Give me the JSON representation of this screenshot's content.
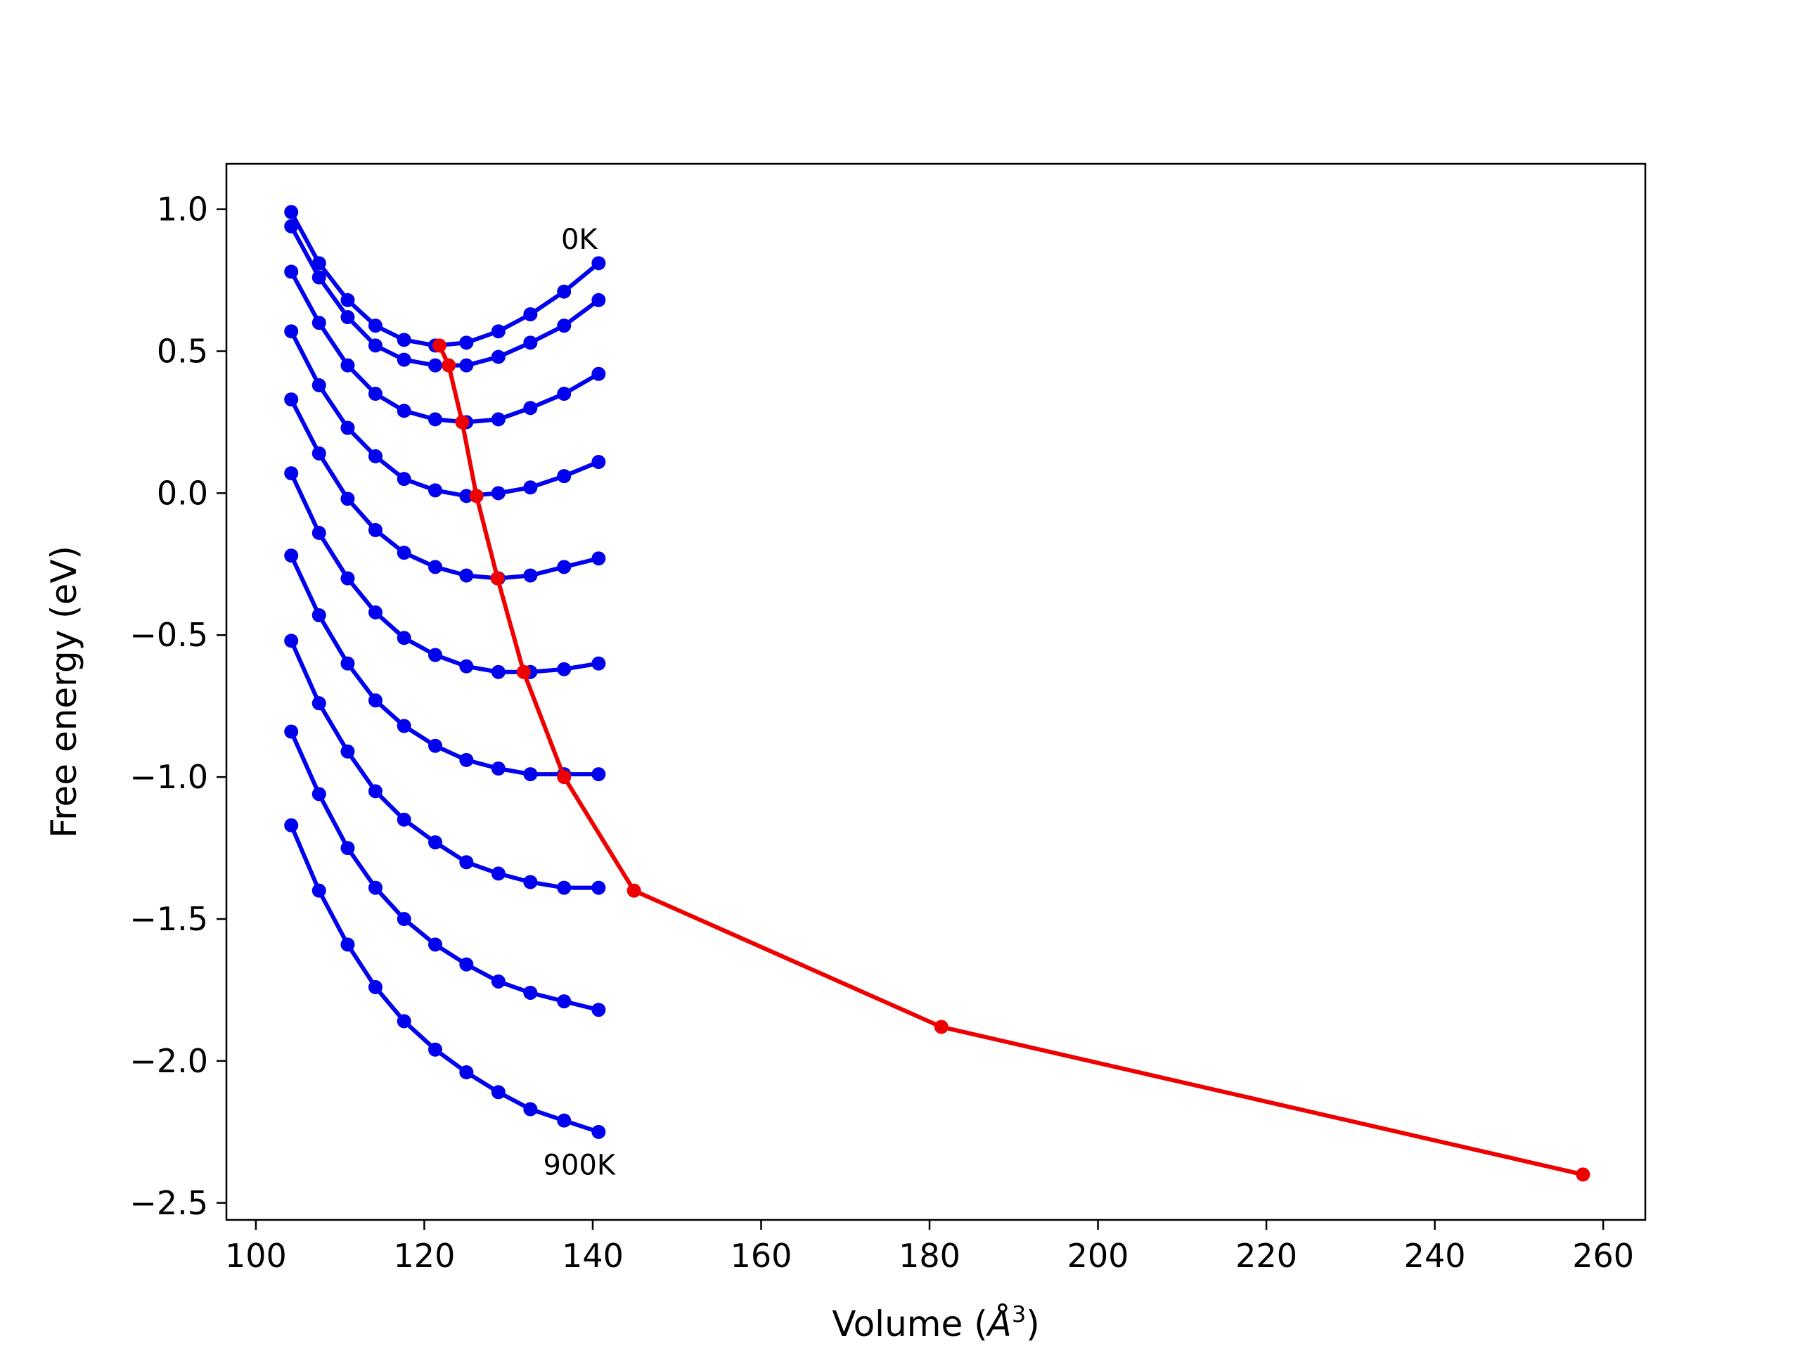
{
  "chart_data": {
    "type": "line",
    "xlabel": "Volume",
    "xlabel_unit": "Å",
    "xlabel_exp": "3",
    "ylabel": "Free energy (eV)",
    "xlim": [
      96.5,
      265
    ],
    "ylim": [
      -2.56,
      1.16
    ],
    "xticks": [
      100,
      120,
      140,
      160,
      180,
      200,
      220,
      240,
      260
    ],
    "xtick_labels": [
      "100",
      "120",
      "140",
      "160",
      "180",
      "200",
      "220",
      "240",
      "260"
    ],
    "yticks": [
      1.0,
      0.5,
      0.0,
      -0.5,
      -1.0,
      -1.5,
      -2.0,
      -2.5
    ],
    "ytick_labels": [
      "1.0",
      "0.5",
      "0.0",
      "−0.5",
      "−1.0",
      "−1.5",
      "−2.0",
      "−2.5"
    ],
    "grid": false,
    "annotations": [
      {
        "text": "0K",
        "x": 138.4,
        "y": 0.86
      },
      {
        "text": "900K",
        "x": 138.4,
        "y": -2.4
      }
    ],
    "curve_volumes": [
      104.2,
      107.5,
      110.9,
      114.2,
      117.6,
      121.3,
      125.0,
      128.8,
      132.6,
      136.6,
      140.7
    ],
    "curves": [
      {
        "color": "#0000ee",
        "values": [
          0.99,
          0.81,
          0.68,
          0.59,
          0.54,
          0.52,
          0.53,
          0.57,
          0.63,
          0.71,
          0.81
        ]
      },
      {
        "color": "#0000ee",
        "values": [
          0.94,
          0.76,
          0.62,
          0.52,
          0.47,
          0.45,
          0.45,
          0.48,
          0.53,
          0.59,
          0.68
        ]
      },
      {
        "color": "#0000ee",
        "values": [
          0.78,
          0.6,
          0.45,
          0.35,
          0.29,
          0.26,
          0.25,
          0.26,
          0.3,
          0.35,
          0.42
        ]
      },
      {
        "color": "#0000ee",
        "values": [
          0.57,
          0.38,
          0.23,
          0.13,
          0.05,
          0.01,
          -0.01,
          0.0,
          0.02,
          0.06,
          0.11
        ]
      },
      {
        "color": "#0000ee",
        "values": [
          0.33,
          0.14,
          -0.02,
          -0.13,
          -0.21,
          -0.26,
          -0.29,
          -0.3,
          -0.29,
          -0.26,
          -0.23
        ]
      },
      {
        "color": "#0000ee",
        "values": [
          0.07,
          -0.14,
          -0.3,
          -0.42,
          -0.51,
          -0.57,
          -0.61,
          -0.63,
          -0.63,
          -0.62,
          -0.6
        ]
      },
      {
        "color": "#0000ee",
        "values": [
          -0.22,
          -0.43,
          -0.6,
          -0.73,
          -0.82,
          -0.89,
          -0.94,
          -0.97,
          -0.99,
          -0.99,
          -0.99
        ]
      },
      {
        "color": "#0000ee",
        "values": [
          -0.52,
          -0.74,
          -0.91,
          -1.05,
          -1.15,
          -1.23,
          -1.3,
          -1.34,
          -1.37,
          -1.39,
          -1.39
        ]
      },
      {
        "color": "#0000ee",
        "values": [
          -0.84,
          -1.06,
          -1.25,
          -1.39,
          -1.5,
          -1.59,
          -1.66,
          -1.72,
          -1.76,
          -1.79,
          -1.82
        ]
      },
      {
        "color": "#0000ee",
        "values": [
          -1.17,
          -1.4,
          -1.59,
          -1.74,
          -1.86,
          -1.96,
          -2.04,
          -2.11,
          -2.17,
          -2.21,
          -2.25
        ]
      }
    ],
    "minimum_series": {
      "color": "#ee0000",
      "x": [
        121.8,
        122.9,
        124.5,
        126.2,
        128.7,
        131.8,
        136.6,
        144.9,
        181.4,
        257.6
      ],
      "y": [
        0.52,
        0.45,
        0.25,
        -0.01,
        -0.3,
        -0.63,
        -1.0,
        -1.4,
        -1.88,
        -2.4
      ]
    }
  }
}
